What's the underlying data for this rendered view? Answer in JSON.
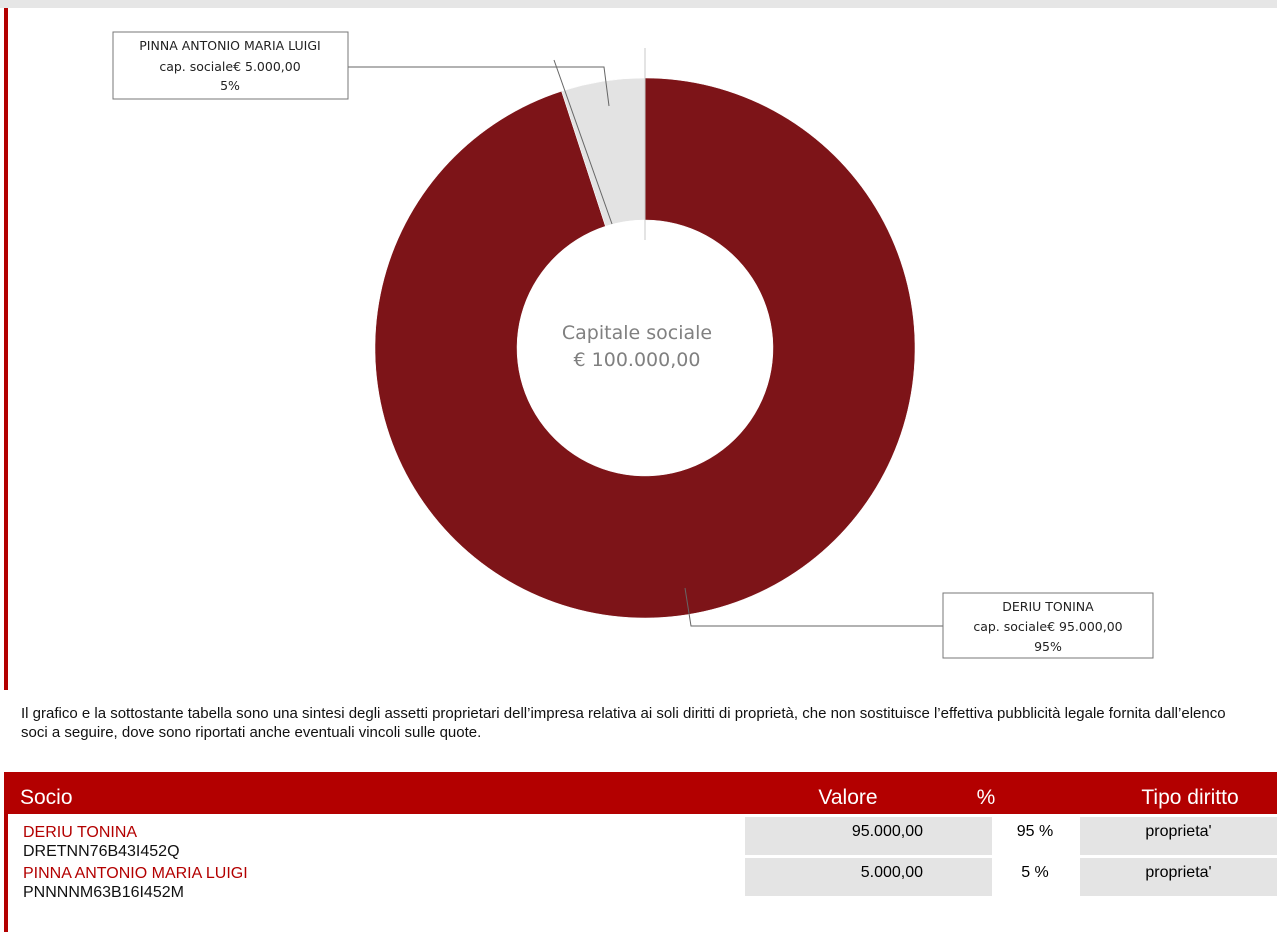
{
  "chart_data": {
    "type": "pie",
    "style": "donut",
    "center_label": [
      "Capitale sociale",
      "€ 100.000,00"
    ],
    "slices": [
      {
        "label": "DERIU TONINA",
        "amount_label": "cap. sociale€ 95.000,00",
        "percent_label": "95%",
        "value": 95,
        "color": "#7d1418"
      },
      {
        "label": "PINNA ANTONIO MARIA LUIGI",
        "amount_label": "cap. sociale€ 5.000,00",
        "percent_label": "5%",
        "value": 5,
        "color": "#e3e3e3"
      }
    ]
  },
  "disclaimer": "Il grafico e la sottostante tabella sono una sintesi degli assetti proprietari dell’impresa relativa ai soli diritti di proprietà, che non sostituisce l’effettiva pubblicità legale fornita dall’elenco soci a seguire, dove sono riportati anche eventuali vincoli sulle quote.",
  "table": {
    "headers": {
      "socio": "Socio",
      "valore": "Valore",
      "perc": "%",
      "tipo": "Tipo diritto"
    },
    "rows": [
      {
        "name": "DERIU TONINA",
        "code": "DRETNN76B43I452Q",
        "valore": "95.000,00",
        "perc": "95 %",
        "tipo": "proprieta'"
      },
      {
        "name": "PINNA ANTONIO MARIA LUIGI",
        "code": "PNNNNM63B16I452M",
        "valore": "5.000,00",
        "perc": "5 %",
        "tipo": "proprieta'"
      }
    ]
  },
  "colors": {
    "accent": "#b30000",
    "top_bar": "#e6e6e6",
    "cell_gray": "#e4e4e4"
  }
}
